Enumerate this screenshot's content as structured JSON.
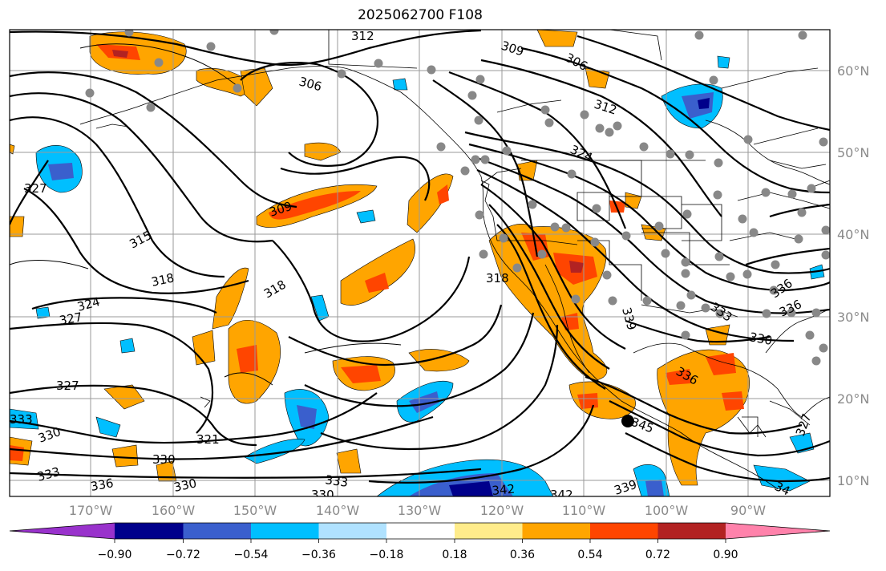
{
  "title": "2025062700 F108",
  "map": {
    "lat_labels": [
      "60°N",
      "50°N",
      "40°N",
      "30°N",
      "20°N",
      "10°N"
    ],
    "lon_labels": [
      "170°W",
      "160°W",
      "150°W",
      "140°W",
      "130°W",
      "120°W",
      "110°W",
      "100°W",
      "90°W"
    ],
    "contour_labels": [
      "312",
      "309",
      "306",
      "306",
      "312",
      "327",
      "324",
      "309",
      "315",
      "318",
      "318",
      "318",
      "324",
      "327",
      "327",
      "336",
      "333",
      "330",
      "336",
      "333",
      "330",
      "321",
      "330",
      "333",
      "330",
      "336",
      "330",
      "333",
      "342",
      "342",
      "339",
      "339",
      "336",
      "345",
      "327",
      "34"
    ]
  },
  "colorbar": {
    "tick_labels": [
      "−0.90",
      "−0.72",
      "−0.54",
      "−0.36",
      "−0.18",
      "0.18",
      "0.36",
      "0.54",
      "0.72",
      "0.90"
    ],
    "colors": [
      "#9932cc",
      "#00008b",
      "#3a5fcd",
      "#00bfff",
      "#b0e2ff",
      "#ffffff",
      "#ffec8b",
      "#ffa500",
      "#ff4500",
      "#b22222",
      "#ff82ab"
    ]
  }
}
